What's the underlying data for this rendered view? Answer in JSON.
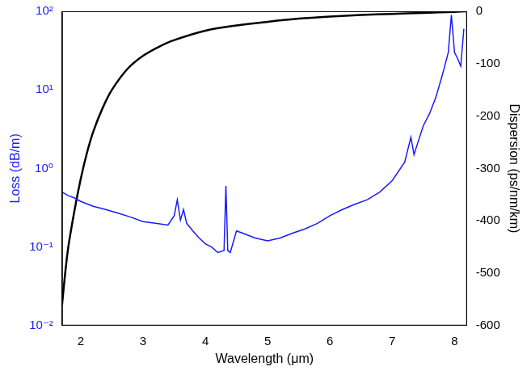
{
  "chart_data": {
    "type": "line",
    "x_label": "Wavelength (μm)",
    "y_label": "Loss (dB/m)",
    "y2_label": "Dispersion (ps/nm/km)",
    "xlim": [
      1.7,
      8.2
    ],
    "xticks": [
      2,
      3,
      4,
      5,
      6,
      7,
      8
    ],
    "log": "y",
    "ylim": [
      0.01,
      100
    ],
    "yticks": [
      {
        "value": 0.01,
        "label": "10⁻²"
      },
      {
        "value": 0.1,
        "label": "10⁻¹"
      },
      {
        "value": 1,
        "label": "10⁰"
      },
      {
        "value": 10,
        "label": "10¹"
      },
      {
        "value": 100,
        "label": "10²"
      }
    ],
    "y2lim": [
      -600,
      0
    ],
    "y2ticks": [
      -600,
      -500,
      -400,
      -300,
      -200,
      -100,
      0
    ],
    "grid": false,
    "series": [
      {
        "color": "#1a1aff",
        "x": [
          1.7,
          1.8,
          1.9,
          2.0,
          2.2,
          2.4,
          2.6,
          2.8,
          3.0,
          3.2,
          3.4,
          3.5,
          3.55,
          3.6,
          3.65,
          3.7,
          3.8,
          3.9,
          4.0,
          4.1,
          4.2,
          4.3,
          4.33,
          4.36,
          4.4,
          4.5,
          4.6,
          4.8,
          5.0,
          5.2,
          5.4,
          5.6,
          5.8,
          6.0,
          6.2,
          6.4,
          6.6,
          6.8,
          7.0,
          7.2,
          7.3,
          7.35,
          7.4,
          7.5,
          7.6,
          7.7,
          7.8,
          7.9,
          7.95,
          8.0,
          8.05,
          8.1,
          8.15
        ],
        "values": [
          0.5,
          0.45,
          0.42,
          0.38,
          0.33,
          0.3,
          0.27,
          0.24,
          0.21,
          0.2,
          0.19,
          0.25,
          0.4,
          0.22,
          0.3,
          0.2,
          0.16,
          0.13,
          0.11,
          0.1,
          0.085,
          0.09,
          0.6,
          0.09,
          0.085,
          0.16,
          0.15,
          0.13,
          0.12,
          0.13,
          0.15,
          0.17,
          0.2,
          0.25,
          0.3,
          0.35,
          0.4,
          0.5,
          0.7,
          1.2,
          2.5,
          1.5,
          2.0,
          3.5,
          5.0,
          8.0,
          15,
          30,
          90,
          30,
          25,
          20,
          60
        ]
      },
      {
        "color": "#000000",
        "axis": "y2",
        "x": [
          1.7,
          1.75,
          1.8,
          1.9,
          2.0,
          2.1,
          2.2,
          2.35,
          2.5,
          2.75,
          3.0,
          3.25,
          3.5,
          4.0,
          4.5,
          5.0,
          5.5,
          6.0,
          6.5,
          7.0,
          7.5,
          8.0,
          8.2
        ],
        "values": [
          -560,
          -500,
          -450,
          -380,
          -320,
          -270,
          -230,
          -185,
          -150,
          -110,
          -85,
          -68,
          -55,
          -37,
          -27,
          -20,
          -14,
          -10,
          -7,
          -5,
          -3,
          -1,
          0
        ]
      }
    ]
  }
}
